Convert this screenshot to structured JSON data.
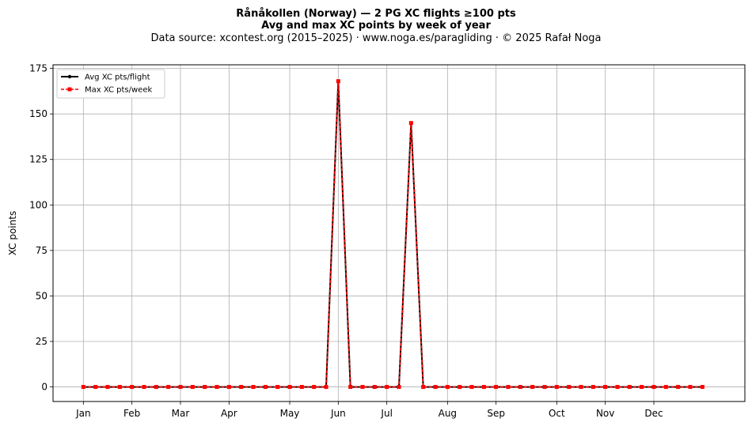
{
  "title_line1": "Rånåkollen (Norway)  —  2 PG XC flights ≥100 pts",
  "title_line2": "Avg and max XC points by week of year",
  "subtitle": "Data source: xcontest.org (2015–2025)  ·  www.noga.es/paragliding  ·  © 2025 Rafał Noga",
  "chart_data": {
    "type": "line",
    "title": "Rånåkollen (Norway)  —  2 PG XC flights ≥100 pts",
    "xlabel": "",
    "ylabel": "XC points",
    "x_ticks": [
      {
        "label": "Jan",
        "week": 1
      },
      {
        "label": "Feb",
        "week": 5
      },
      {
        "label": "Mar",
        "week": 9
      },
      {
        "label": "Apr",
        "week": 13
      },
      {
        "label": "May",
        "week": 18
      },
      {
        "label": "Jun",
        "week": 22
      },
      {
        "label": "Jul",
        "week": 26
      },
      {
        "label": "Aug",
        "week": 31
      },
      {
        "label": "Sep",
        "week": 35
      },
      {
        "label": "Oct",
        "week": 40
      },
      {
        "label": "Nov",
        "week": 44
      },
      {
        "label": "Dec",
        "week": 48
      }
    ],
    "xlim": [
      -1.5,
      55.5
    ],
    "ylim": [
      -8,
      177
    ],
    "y_ticks": [
      0,
      25,
      50,
      75,
      100,
      125,
      150,
      175
    ],
    "grid": true,
    "legend_position": "top-left",
    "x": [
      1,
      2,
      3,
      4,
      5,
      6,
      7,
      8,
      9,
      10,
      11,
      12,
      13,
      14,
      15,
      16,
      17,
      18,
      19,
      20,
      21,
      22,
      23,
      24,
      25,
      26,
      27,
      28,
      29,
      30,
      31,
      32,
      33,
      34,
      35,
      36,
      37,
      38,
      39,
      40,
      41,
      42,
      43,
      44,
      45,
      46,
      47,
      48,
      49,
      50,
      51,
      52
    ],
    "series": [
      {
        "name": "Avg XC pts/flight",
        "color": "#000000",
        "style": "solid",
        "marker": "circle",
        "values": [
          0,
          0,
          0,
          0,
          0,
          0,
          0,
          0,
          0,
          0,
          0,
          0,
          0,
          0,
          0,
          0,
          0,
          0,
          0,
          0,
          0,
          168,
          0,
          0,
          0,
          0,
          0,
          145,
          0,
          0,
          0,
          0,
          0,
          0,
          0,
          0,
          0,
          0,
          0,
          0,
          0,
          0,
          0,
          0,
          0,
          0,
          0,
          0,
          0,
          0,
          0,
          0
        ]
      },
      {
        "name": "Max XC pts/week",
        "color": "#ff0000",
        "style": "dashed",
        "marker": "square",
        "values": [
          0,
          0,
          0,
          0,
          0,
          0,
          0,
          0,
          0,
          0,
          0,
          0,
          0,
          0,
          0,
          0,
          0,
          0,
          0,
          0,
          0,
          168,
          0,
          0,
          0,
          0,
          0,
          145,
          0,
          0,
          0,
          0,
          0,
          0,
          0,
          0,
          0,
          0,
          0,
          0,
          0,
          0,
          0,
          0,
          0,
          0,
          0,
          0,
          0,
          0,
          0,
          0
        ]
      }
    ]
  }
}
